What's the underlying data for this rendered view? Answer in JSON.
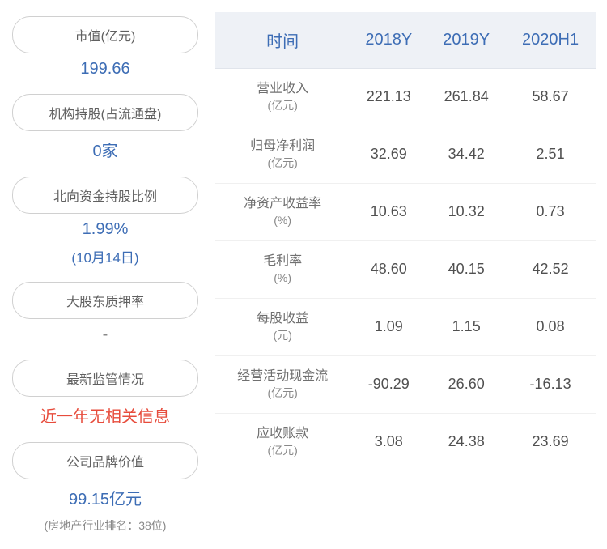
{
  "left": {
    "items": [
      {
        "label": "市值(亿元)",
        "value": "199.66",
        "valueClass": "value-blue"
      },
      {
        "label": "机构持股(占流通盘)",
        "value": "0家",
        "valueClass": "value-blue"
      },
      {
        "label": "北向资金持股比例",
        "value": "1.99%",
        "valueClass": "value-blue",
        "dateNote": "(10月14日)"
      },
      {
        "label": "大股东质押率",
        "value": "-",
        "valueClass": "value-gray"
      },
      {
        "label": "最新监管情况",
        "value": "近一年无相关信息",
        "valueClass": "value-red"
      },
      {
        "label": "公司品牌价值",
        "value": "99.15亿元",
        "valueClass": "value-blue",
        "subNote": "(房地产行业排名：38位)"
      }
    ]
  },
  "table": {
    "columns": [
      "时间",
      "2018Y",
      "2019Y",
      "2020H1"
    ],
    "rows": [
      {
        "name": "营业收入",
        "unit": "(亿元)",
        "v": [
          "221.13",
          "261.84",
          "58.67"
        ]
      },
      {
        "name": "归母净利润",
        "unit": "(亿元)",
        "v": [
          "32.69",
          "34.42",
          "2.51"
        ]
      },
      {
        "name": "净资产收益率",
        "unit": "(%)",
        "v": [
          "10.63",
          "10.32",
          "0.73"
        ]
      },
      {
        "name": "毛利率",
        "unit": "(%)",
        "v": [
          "48.60",
          "40.15",
          "42.52"
        ]
      },
      {
        "name": "每股收益",
        "unit": "(元)",
        "v": [
          "1.09",
          "1.15",
          "0.08"
        ]
      },
      {
        "name": "经营活动现金流",
        "unit": "(亿元)",
        "v": [
          "-90.29",
          "26.60",
          "-16.13"
        ]
      },
      {
        "name": "应收账款",
        "unit": "(亿元)",
        "v": [
          "3.08",
          "24.38",
          "23.69"
        ]
      }
    ],
    "header_bg": "#eef1f6",
    "header_color": "#3d6db5",
    "cell_color": "#505050",
    "row_border": "#f0f0f0"
  }
}
